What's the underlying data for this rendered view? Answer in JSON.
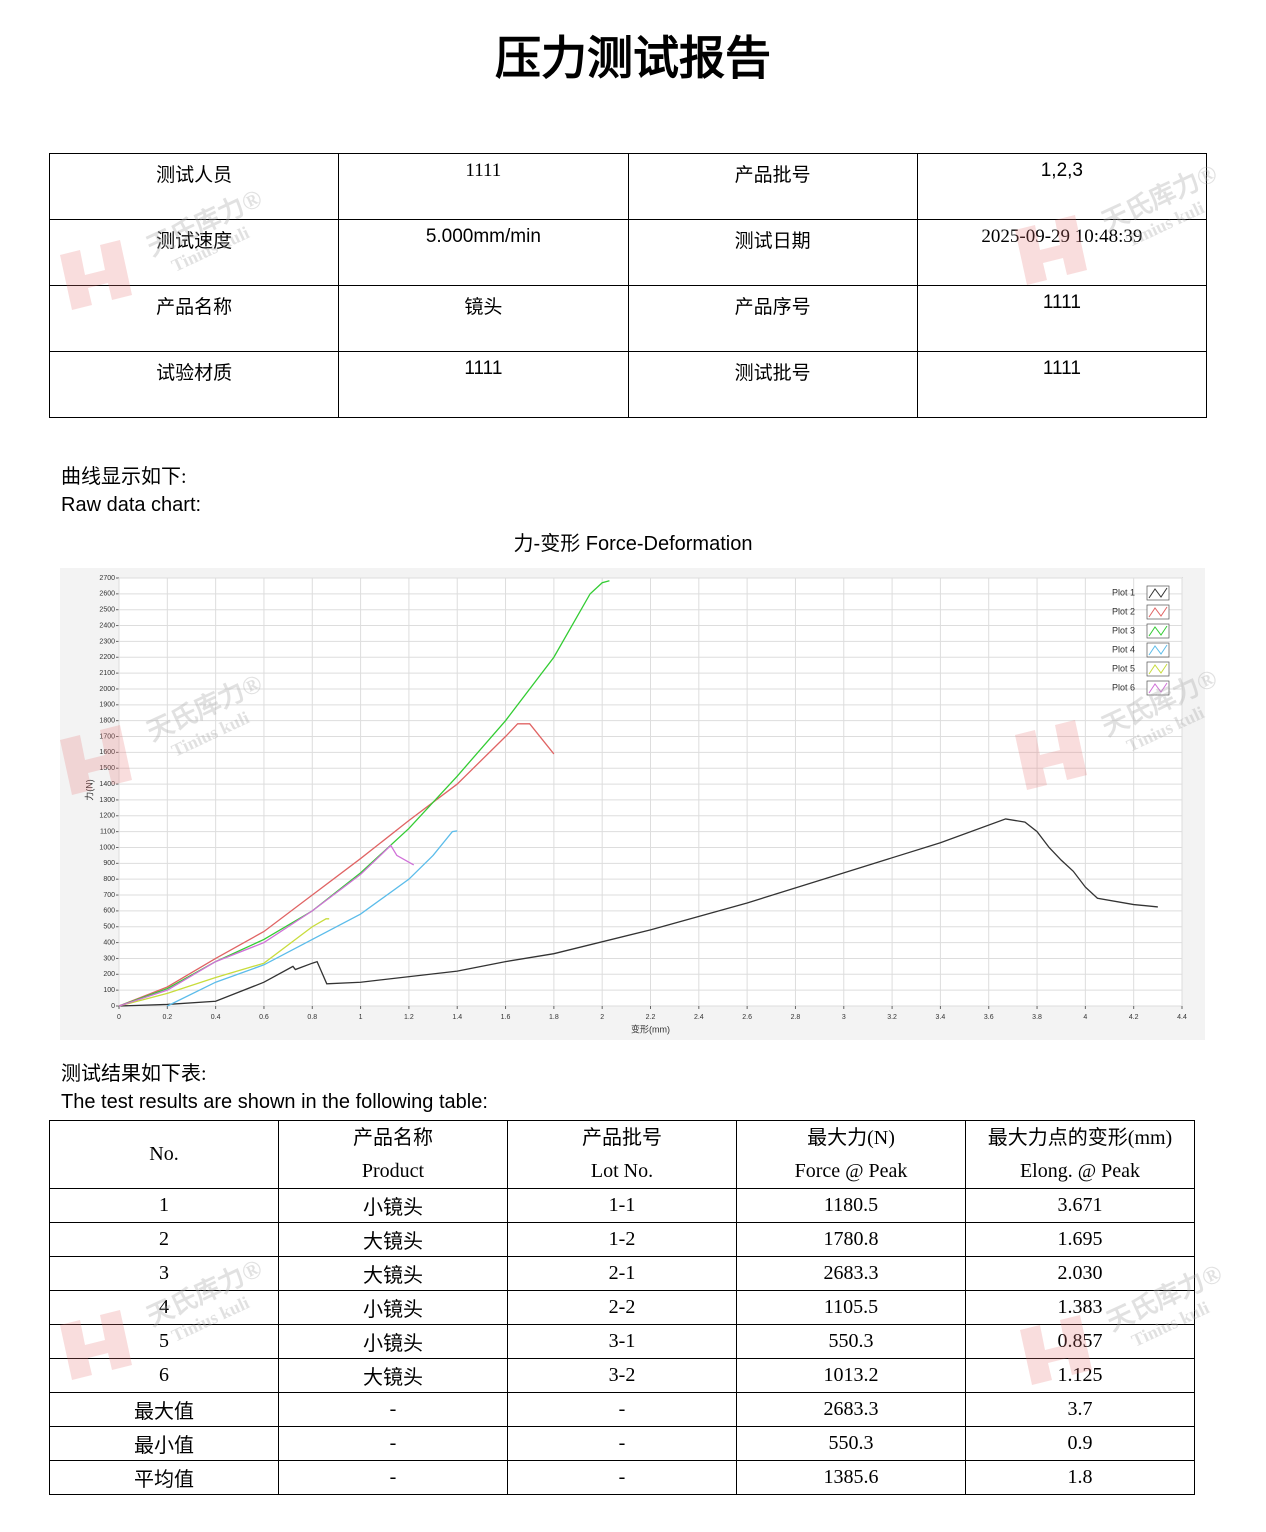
{
  "header": {
    "title": "压力测试报告"
  },
  "info_table": {
    "rows": [
      [
        "测试人员",
        "1111",
        "产品批号",
        "1,2,3"
      ],
      [
        "测试速度",
        "5.000mm/min",
        "测试日期",
        "2025-09-29 10:48:39"
      ],
      [
        "产品名称",
        "镜头",
        "产品序号",
        "1111"
      ],
      [
        "试验材质",
        "1111",
        "测试批号",
        "1111"
      ]
    ]
  },
  "watermark": {
    "brand": "天氏库力®",
    "latin": "Tinius kuli"
  },
  "chart_section": {
    "label_cn": "曲线显示如下:",
    "label_en": "Raw data chart:"
  },
  "chart_data": {
    "type": "line",
    "title": "力-变形 Force-Deformation",
    "x_label": "变形(mm)",
    "y_label": "力(N)",
    "xlim": [
      0,
      4.4
    ],
    "ylim": [
      0,
      2700
    ],
    "xticks": [
      0,
      0.2,
      0.4,
      0.6,
      0.8,
      1,
      1.2,
      1.4,
      1.6,
      1.8,
      2,
      2.2,
      2.4,
      2.6,
      2.8,
      3,
      3.2,
      3.4,
      3.6,
      3.8,
      4,
      4.2,
      4.4
    ],
    "yticks": [
      0,
      100,
      200,
      300,
      400,
      500,
      600,
      700,
      800,
      900,
      1000,
      1100,
      1200,
      1300,
      1400,
      1500,
      1600,
      1700,
      1800,
      1900,
      2000,
      2100,
      2200,
      2300,
      2400,
      2500,
      2600,
      2700
    ],
    "grid": true,
    "legend": "top-right",
    "series": [
      {
        "name": "Plot 1",
        "color": "#333333",
        "x": [
          0,
          0.2,
          0.4,
          0.6,
          0.72,
          0.73,
          0.8,
          0.82,
          0.86,
          1.0,
          1.4,
          1.6,
          1.8,
          2.2,
          2.6,
          3.0,
          3.4,
          3.67,
          3.75,
          3.8,
          3.85,
          3.9,
          3.95,
          4.0,
          4.05,
          4.2,
          4.3
        ],
        "values": [
          0,
          10,
          30,
          150,
          250,
          230,
          270,
          280,
          140,
          150,
          220,
          280,
          330,
          480,
          650,
          840,
          1030,
          1180,
          1160,
          1100,
          1000,
          920,
          850,
          750,
          680,
          640,
          625
        ]
      },
      {
        "name": "Plot 2",
        "color": "#e06464",
        "x": [
          0,
          0.2,
          0.4,
          0.6,
          0.8,
          1.0,
          1.2,
          1.4,
          1.6,
          1.65,
          1.7,
          1.8
        ],
        "values": [
          0,
          120,
          300,
          470,
          700,
          930,
          1170,
          1400,
          1700,
          1780,
          1780,
          1590
        ]
      },
      {
        "name": "Plot 3",
        "color": "#33cc33",
        "x": [
          0,
          0.2,
          0.4,
          0.6,
          0.8,
          1.0,
          1.2,
          1.4,
          1.6,
          1.8,
          1.95,
          2.0,
          2.03
        ],
        "values": [
          0,
          110,
          280,
          420,
          600,
          840,
          1120,
          1450,
          1800,
          2200,
          2600,
          2670,
          2683
        ]
      },
      {
        "name": "Plot 4",
        "color": "#5bbcea",
        "x": [
          0.2,
          0.4,
          0.6,
          0.8,
          1.0,
          1.2,
          1.3,
          1.38,
          1.4
        ],
        "values": [
          0,
          150,
          260,
          420,
          580,
          800,
          950,
          1100,
          1105
        ]
      },
      {
        "name": "Plot 5",
        "color": "#c8dc3c",
        "x": [
          0,
          0.2,
          0.4,
          0.6,
          0.8,
          0.857,
          0.87
        ],
        "values": [
          0,
          80,
          180,
          270,
          500,
          550,
          550
        ]
      },
      {
        "name": "Plot 6",
        "color": "#d070d8",
        "x": [
          0,
          0.2,
          0.4,
          0.6,
          0.8,
          1.0,
          1.125,
          1.15,
          1.22
        ],
        "values": [
          0,
          100,
          280,
          400,
          600,
          830,
          1013,
          950,
          890
        ]
      }
    ]
  },
  "results_section": {
    "label_cn": "测试结果如下表:",
    "label_en": "The test results are shown in the following table:"
  },
  "results_table": {
    "header": [
      [
        "No."
      ],
      [
        "产品名称",
        "Product"
      ],
      [
        "产品批号",
        "Lot No."
      ],
      [
        "最大力(N)",
        "Force @ Peak"
      ],
      [
        "最大力点的变形(mm)",
        "Elong. @ Peak"
      ]
    ],
    "rows": [
      [
        "1",
        "小镜头",
        "1-1",
        "1180.5",
        "3.671"
      ],
      [
        "2",
        "大镜头",
        "1-2",
        "1780.8",
        "1.695"
      ],
      [
        "3",
        "大镜头",
        "2-1",
        "2683.3",
        "2.030"
      ],
      [
        "4",
        "小镜头",
        "2-2",
        "1105.5",
        "1.383"
      ],
      [
        "5",
        "小镜头",
        "3-1",
        "550.3",
        "0.857"
      ],
      [
        "6",
        "大镜头",
        "3-2",
        "1013.2",
        "1.125"
      ],
      [
        "最大值",
        "-",
        "-",
        "2683.3",
        "3.7"
      ],
      [
        "最小值",
        "-",
        "-",
        "550.3",
        "0.9"
      ],
      [
        "平均值",
        "-",
        "-",
        "1385.6",
        "1.8"
      ]
    ]
  }
}
